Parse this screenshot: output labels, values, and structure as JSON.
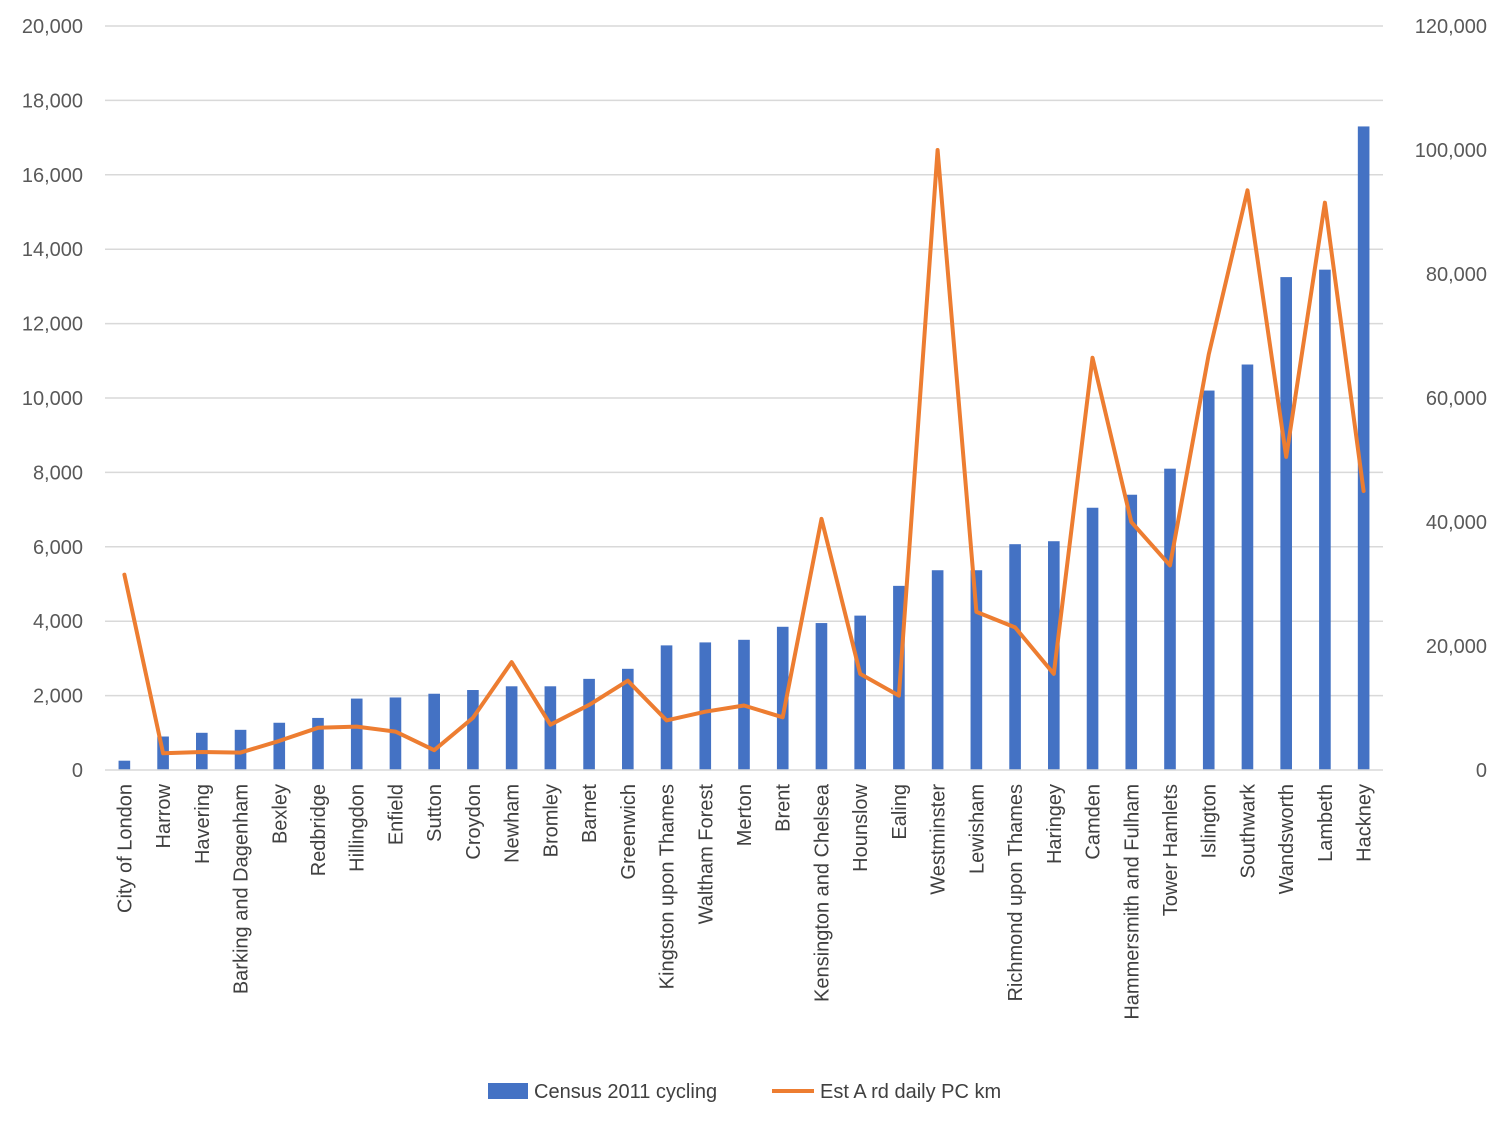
{
  "chart_data": {
    "type": "bar",
    "categories": [
      "City of London",
      "Harrow",
      "Havering",
      "Barking and Dagenham",
      "Bexley",
      "Redbridge",
      "Hillingdon",
      "Enfield",
      "Sutton",
      "Croydon",
      "Newham",
      "Bromley",
      "Barnet",
      "Greenwich",
      "Kingston upon Thames",
      "Waltham Forest",
      "Merton",
      "Brent",
      "Kensington and Chelsea",
      "Hounslow",
      "Ealing",
      "Westminster",
      "Lewisham",
      "Richmond upon Thames",
      "Haringey",
      "Camden",
      "Hammersmith and Fulham",
      "Tower Hamlets",
      "Islington",
      "Southwark",
      "Wandsworth",
      "Lambeth",
      "Hackney"
    ],
    "series": [
      {
        "name": "Census 2011 cycling",
        "type": "bar",
        "axis": "left",
        "color": "#4472C4",
        "values": [
          250,
          900,
          1000,
          1080,
          1270,
          1400,
          1920,
          1950,
          2050,
          2150,
          2250,
          2250,
          2450,
          2720,
          3350,
          3430,
          3500,
          3850,
          3950,
          4150,
          4950,
          5370,
          5370,
          6070,
          6150,
          7050,
          7400,
          8100,
          10200,
          10900,
          13250,
          13450,
          17300
        ]
      },
      {
        "name": "Est A rd daily PC km",
        "type": "line",
        "axis": "right",
        "color": "#ED7D31",
        "values": [
          31500,
          2700,
          2900,
          2800,
          4700,
          6800,
          7000,
          6200,
          3200,
          8400,
          17400,
          7300,
          10500,
          14400,
          8000,
          9400,
          10400,
          8500,
          40500,
          15500,
          12000,
          100000,
          25500,
          23000,
          15500,
          66500,
          40000,
          33000,
          67000,
          93500,
          50500,
          91500,
          45000
        ]
      }
    ],
    "y_left": {
      "min": 0,
      "max": 20000,
      "step": 2000
    },
    "y_right": {
      "min": 0,
      "max": 120000,
      "step": 20000
    },
    "grid": true,
    "legend": "bottom",
    "title": "",
    "xlabel": "",
    "ylabel": ""
  }
}
